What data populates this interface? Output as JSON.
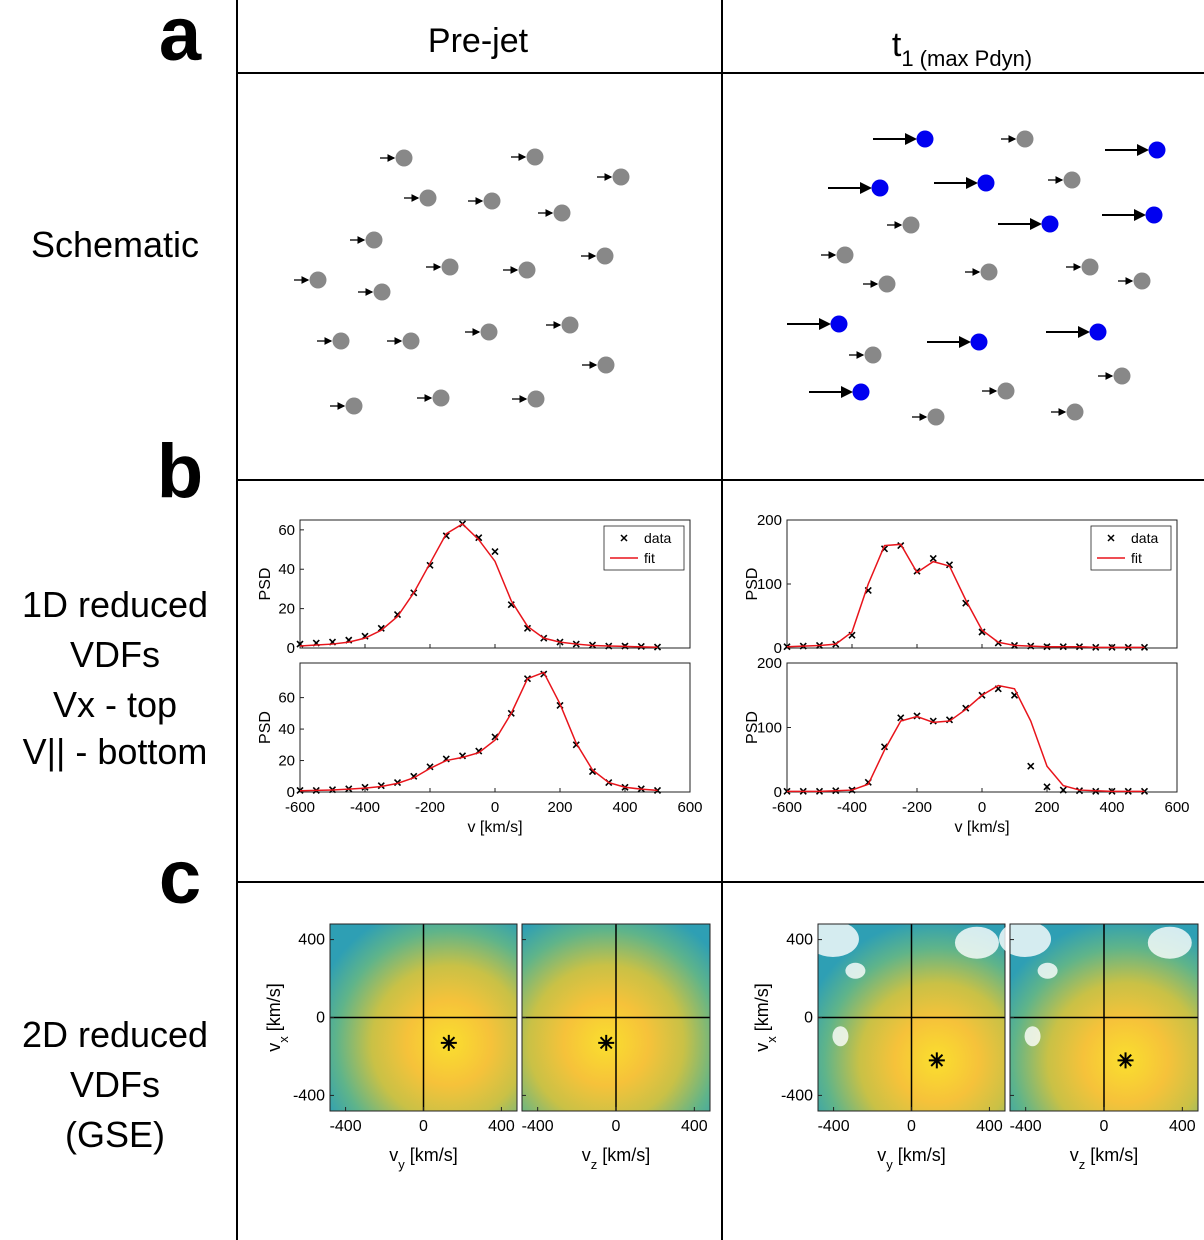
{
  "panel_labels": [
    "a",
    "b",
    "c"
  ],
  "column_headers": [
    "Pre-jet",
    {
      "main": "t",
      "sub": "1 (max Pdyn)"
    }
  ],
  "row_labels": [
    [
      "Schematic"
    ],
    [
      "1D reduced",
      "VDFs",
      "Vx - top",
      "V|| - bottom"
    ],
    [
      "2D reduced",
      "VDFs",
      "(GSE)"
    ]
  ],
  "chart_data": [
    {
      "type": "line",
      "ylabel": "PSD",
      "xlim": [
        -600,
        600
      ],
      "ylim": [
        0,
        65
      ],
      "xticks": [
        -600,
        -400,
        -200,
        0,
        200,
        400,
        600
      ],
      "yticks": [
        0,
        20,
        40,
        60
      ],
      "xtick_labels": false,
      "legend": "upper right",
      "x": [
        -600,
        -550,
        -500,
        -450,
        -400,
        -350,
        -300,
        -250,
        -200,
        -150,
        -100,
        -50,
        0,
        50,
        100,
        150,
        200,
        250,
        300,
        350,
        400,
        450,
        500
      ],
      "series": [
        {
          "name": "data",
          "color": "#000000",
          "marker": "x",
          "values": [
            2,
            2.5,
            3,
            4,
            6,
            10,
            17,
            28,
            42,
            57,
            63,
            56,
            49,
            22,
            10,
            5,
            3,
            2,
            1.5,
            1,
            1,
            0.8,
            0.5
          ]
        },
        {
          "name": "fit",
          "color": "#e8141b",
          "values": [
            1,
            1.5,
            2,
            3,
            5,
            9,
            16,
            28,
            43,
            58,
            63,
            55,
            44,
            24,
            11,
            5,
            3,
            2,
            1.3,
            1,
            0.8,
            0.6,
            0.4
          ]
        }
      ]
    },
    {
      "type": "line",
      "ylabel": "PSD",
      "xlabel": "v [km/s]",
      "xlim": [
        -600,
        600
      ],
      "ylim": [
        0,
        82
      ],
      "xticks": [
        -600,
        -400,
        -200,
        0,
        200,
        400,
        600
      ],
      "yticks": [
        0,
        20,
        40,
        60
      ],
      "x": [
        -600,
        -550,
        -500,
        -450,
        -400,
        -350,
        -300,
        -250,
        -200,
        -150,
        -100,
        -50,
        0,
        50,
        100,
        150,
        200,
        250,
        300,
        350,
        400,
        450,
        500
      ],
      "series": [
        {
          "color": "#000000",
          "marker": "x",
          "values": [
            1,
            1,
            1.5,
            2,
            3,
            4,
            6,
            10,
            16,
            21,
            23,
            26,
            35,
            50,
            72,
            75,
            55,
            30,
            13,
            6,
            3,
            2,
            1
          ]
        },
        {
          "color": "#e8141b",
          "values": [
            0.8,
            1,
            1.3,
            1.8,
            2.5,
            3.5,
            5.5,
            9,
            15,
            20,
            22,
            25,
            33,
            50,
            72,
            76,
            56,
            31,
            14,
            6,
            3,
            1.8,
            1
          ]
        }
      ]
    },
    {
      "type": "line",
      "ylabel": "PSD",
      "xlim": [
        -600,
        600
      ],
      "ylim": [
        0,
        200
      ],
      "xticks": [
        -600,
        -400,
        -200,
        0,
        200,
        400,
        600
      ],
      "yticks": [
        0,
        100,
        200
      ],
      "xtick_labels": false,
      "legend": "upper right",
      "x": [
        -600,
        -550,
        -500,
        -450,
        -400,
        -350,
        -300,
        -250,
        -200,
        -150,
        -100,
        -50,
        0,
        50,
        100,
        150,
        200,
        250,
        300,
        350,
        400,
        450,
        500
      ],
      "series": [
        {
          "name": "data",
          "color": "#000000",
          "marker": "x",
          "values": [
            2,
            3,
            4,
            6,
            20,
            90,
            155,
            160,
            120,
            140,
            130,
            70,
            25,
            8,
            4,
            3,
            2,
            2,
            2,
            1,
            1,
            1,
            1
          ]
        },
        {
          "name": "fit",
          "color": "#e8141b",
          "values": [
            2,
            3,
            4,
            6,
            25,
            100,
            160,
            162,
            118,
            135,
            128,
            75,
            28,
            9,
            4,
            3,
            2,
            2,
            2,
            1,
            1,
            1,
            1
          ]
        }
      ]
    },
    {
      "type": "line",
      "ylabel": "PSD",
      "xlabel": "v [km/s]",
      "xlim": [
        -600,
        600
      ],
      "ylim": [
        0,
        200
      ],
      "xticks": [
        -600,
        -400,
        -200,
        0,
        200,
        400,
        600
      ],
      "yticks": [
        0,
        100,
        200
      ],
      "x": [
        -600,
        -550,
        -500,
        -450,
        -400,
        -350,
        -300,
        -250,
        -200,
        -150,
        -100,
        -50,
        0,
        50,
        100,
        150,
        200,
        250,
        300,
        350,
        400,
        450,
        500
      ],
      "series": [
        {
          "color": "#000000",
          "marker": "x",
          "values": [
            1,
            1,
            1,
            2,
            3,
            15,
            70,
            115,
            118,
            110,
            112,
            130,
            150,
            160,
            150,
            40,
            8,
            3,
            2,
            1,
            1,
            1,
            1
          ]
        },
        {
          "color": "#e8141b",
          "values": [
            1,
            1,
            1,
            2,
            3,
            12,
            65,
            110,
            117,
            108,
            110,
            128,
            150,
            165,
            160,
            110,
            40,
            10,
            3,
            2,
            1,
            1,
            1
          ]
        }
      ]
    },
    {
      "type": "scatter",
      "xlabel": [
        "v",
        "y",
        " [km/s]"
      ],
      "ylabel": [
        "v",
        "x",
        " [km/s]"
      ],
      "xlim": [
        -480,
        480
      ],
      "ylim": [
        -480,
        480
      ],
      "xticks": [
        -400,
        0,
        400
      ],
      "yticks": [
        -400,
        0,
        400
      ],
      "x": [
        130
      ],
      "values": [
        -130
      ]
    },
    {
      "type": "scatter",
      "xlabel": [
        "v",
        "z",
        " [km/s]"
      ],
      "xlim": [
        -480,
        480
      ],
      "ylim": [
        -480,
        480
      ],
      "xticks": [
        -400,
        0,
        400
      ],
      "yticks": [
        -400,
        0,
        400
      ],
      "ytick_labels": false,
      "x": [
        -50
      ],
      "values": [
        -130
      ]
    },
    {
      "type": "scatter",
      "xlabel": [
        "v",
        "y",
        " [km/s]"
      ],
      "ylabel": [
        "v",
        "x",
        " [km/s]"
      ],
      "xlim": [
        -480,
        480
      ],
      "ylim": [
        -480,
        480
      ],
      "xticks": [
        -400,
        0,
        400
      ],
      "yticks": [
        -400,
        0,
        400
      ],
      "x": [
        130
      ],
      "values": [
        -220
      ]
    },
    {
      "type": "scatter",
      "xlabel": [
        "v",
        "z",
        " [km/s]"
      ],
      "xlim": [
        -480,
        480
      ],
      "ylim": [
        -480,
        480
      ],
      "xticks": [
        -400,
        0,
        400
      ],
      "yticks": [
        -400,
        0,
        400
      ],
      "ytick_labels": false,
      "x": [
        110
      ],
      "values": [
        -220
      ]
    }
  ]
}
